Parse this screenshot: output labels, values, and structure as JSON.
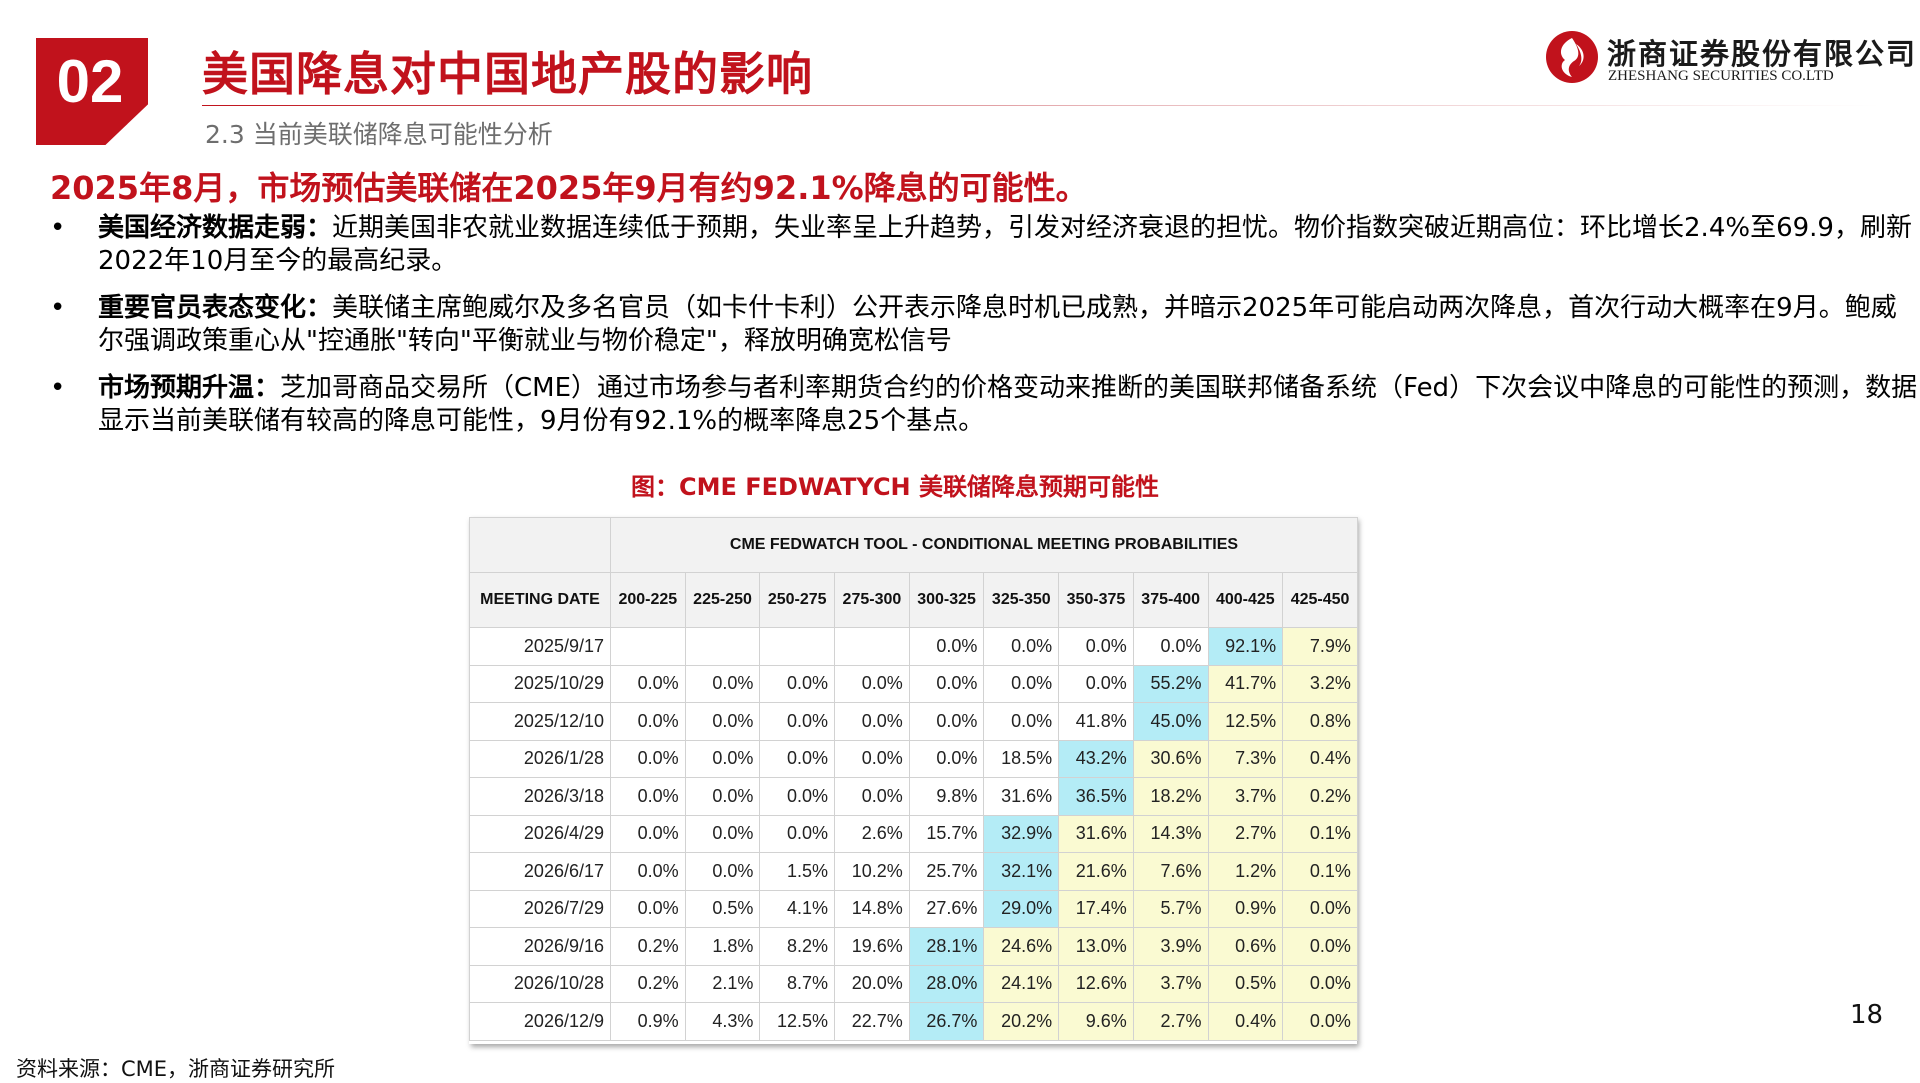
{
  "header": {
    "section_number": "02",
    "title": "美国降息对中国地产股的影响",
    "subtitle": "2.3 当前美联储降息可能性分析",
    "logo_cn": "浙商证券股份有限公司",
    "logo_en": "ZHESHANG SECURITIES CO.LTD",
    "brand_color": "#c1121c"
  },
  "headline": "2025年8月，市场预估美联储在2025年9月有约92.1%降息的可能性。",
  "bullets": [
    {
      "marker": "•",
      "label": "美国经济数据走弱：",
      "text": "近期美国非农就业数据连续低于预期，失业率呈上升趋势，引发对经济衰退的担忧。物价指数突破近期高位：环比增长2.4%至69.9，刷新2022年10月至今的最高纪录。"
    },
    {
      "marker": "•",
      "label": "重要官员表态变化：",
      "text": "美联储主席鲍威尔及多名官员（如卡什卡利）公开表示降息时机已成熟，并暗示2025年可能启动两次降息，首次行动大概率在9月。鲍威尔强调政策重心从\"控通胀\"转向\"平衡就业与物价稳定\"，释放明确宽松信号"
    },
    {
      "marker": "•",
      "label": "市场预期升温：",
      "text": "芝加哥商品交易所（CME）通过市场参与者利率期货合约的价格变动来推断的美国联邦储备系统（Fed）下次会议中降息的可能性的预测，数据显示当前美联储有较高的降息可能性，9月份有92.1%的概率降息25个基点。"
    }
  ],
  "figure": {
    "caption": "图：CME FEDWATYCH 美联储降息预期可能性",
    "table_title": "CME FEDWATCH TOOL - CONDITIONAL MEETING PROBABILITIES",
    "date_header": "MEETING DATE",
    "columns": [
      "200-225",
      "225-250",
      "250-275",
      "275-300",
      "300-325",
      "325-350",
      "350-375",
      "375-400",
      "400-425",
      "425-450"
    ],
    "rows": [
      {
        "date": "2025/9/17",
        "values": [
          "",
          "",
          "",
          "",
          "0.0%",
          "0.0%",
          "0.0%",
          "0.0%",
          "92.1%",
          "7.9%"
        ],
        "highlight": 8
      },
      {
        "date": "2025/10/29",
        "values": [
          "0.0%",
          "0.0%",
          "0.0%",
          "0.0%",
          "0.0%",
          "0.0%",
          "0.0%",
          "55.2%",
          "41.7%",
          "3.2%"
        ],
        "highlight": 7
      },
      {
        "date": "2025/12/10",
        "values": [
          "0.0%",
          "0.0%",
          "0.0%",
          "0.0%",
          "0.0%",
          "0.0%",
          "41.8%",
          "45.0%",
          "12.5%",
          "0.8%"
        ],
        "highlight": 7
      },
      {
        "date": "2026/1/28",
        "values": [
          "0.0%",
          "0.0%",
          "0.0%",
          "0.0%",
          "0.0%",
          "18.5%",
          "43.2%",
          "30.6%",
          "7.3%",
          "0.4%"
        ],
        "highlight": 6
      },
      {
        "date": "2026/3/18",
        "values": [
          "0.0%",
          "0.0%",
          "0.0%",
          "0.0%",
          "9.8%",
          "31.6%",
          "36.5%",
          "18.2%",
          "3.7%",
          "0.2%"
        ],
        "highlight": 6
      },
      {
        "date": "2026/4/29",
        "values": [
          "0.0%",
          "0.0%",
          "0.0%",
          "2.6%",
          "15.7%",
          "32.9%",
          "31.6%",
          "14.3%",
          "2.7%",
          "0.1%"
        ],
        "highlight": 5
      },
      {
        "date": "2026/6/17",
        "values": [
          "0.0%",
          "0.0%",
          "1.5%",
          "10.2%",
          "25.7%",
          "32.1%",
          "21.6%",
          "7.6%",
          "1.2%",
          "0.1%"
        ],
        "highlight": 5
      },
      {
        "date": "2026/7/29",
        "values": [
          "0.0%",
          "0.5%",
          "4.1%",
          "14.8%",
          "27.6%",
          "29.0%",
          "17.4%",
          "5.7%",
          "0.9%",
          "0.0%"
        ],
        "highlight": 5
      },
      {
        "date": "2026/9/16",
        "values": [
          "0.2%",
          "1.8%",
          "8.2%",
          "19.6%",
          "28.1%",
          "24.6%",
          "13.0%",
          "3.9%",
          "0.6%",
          "0.0%"
        ],
        "highlight": 4
      },
      {
        "date": "2026/10/28",
        "values": [
          "0.2%",
          "2.1%",
          "8.7%",
          "20.0%",
          "28.0%",
          "24.1%",
          "12.6%",
          "3.7%",
          "0.5%",
          "0.0%"
        ],
        "highlight": 4
      },
      {
        "date": "2026/12/9",
        "values": [
          "0.9%",
          "4.3%",
          "12.5%",
          "22.7%",
          "26.7%",
          "20.2%",
          "9.6%",
          "2.7%",
          "0.4%",
          "0.0%"
        ],
        "highlight": 4
      }
    ],
    "colors": {
      "highlight": "#b4ecf6",
      "above": "#fafad2",
      "normal": "#ffffff"
    }
  },
  "page_number": "18",
  "source": "资料来源：CME，浙商证券研究所"
}
